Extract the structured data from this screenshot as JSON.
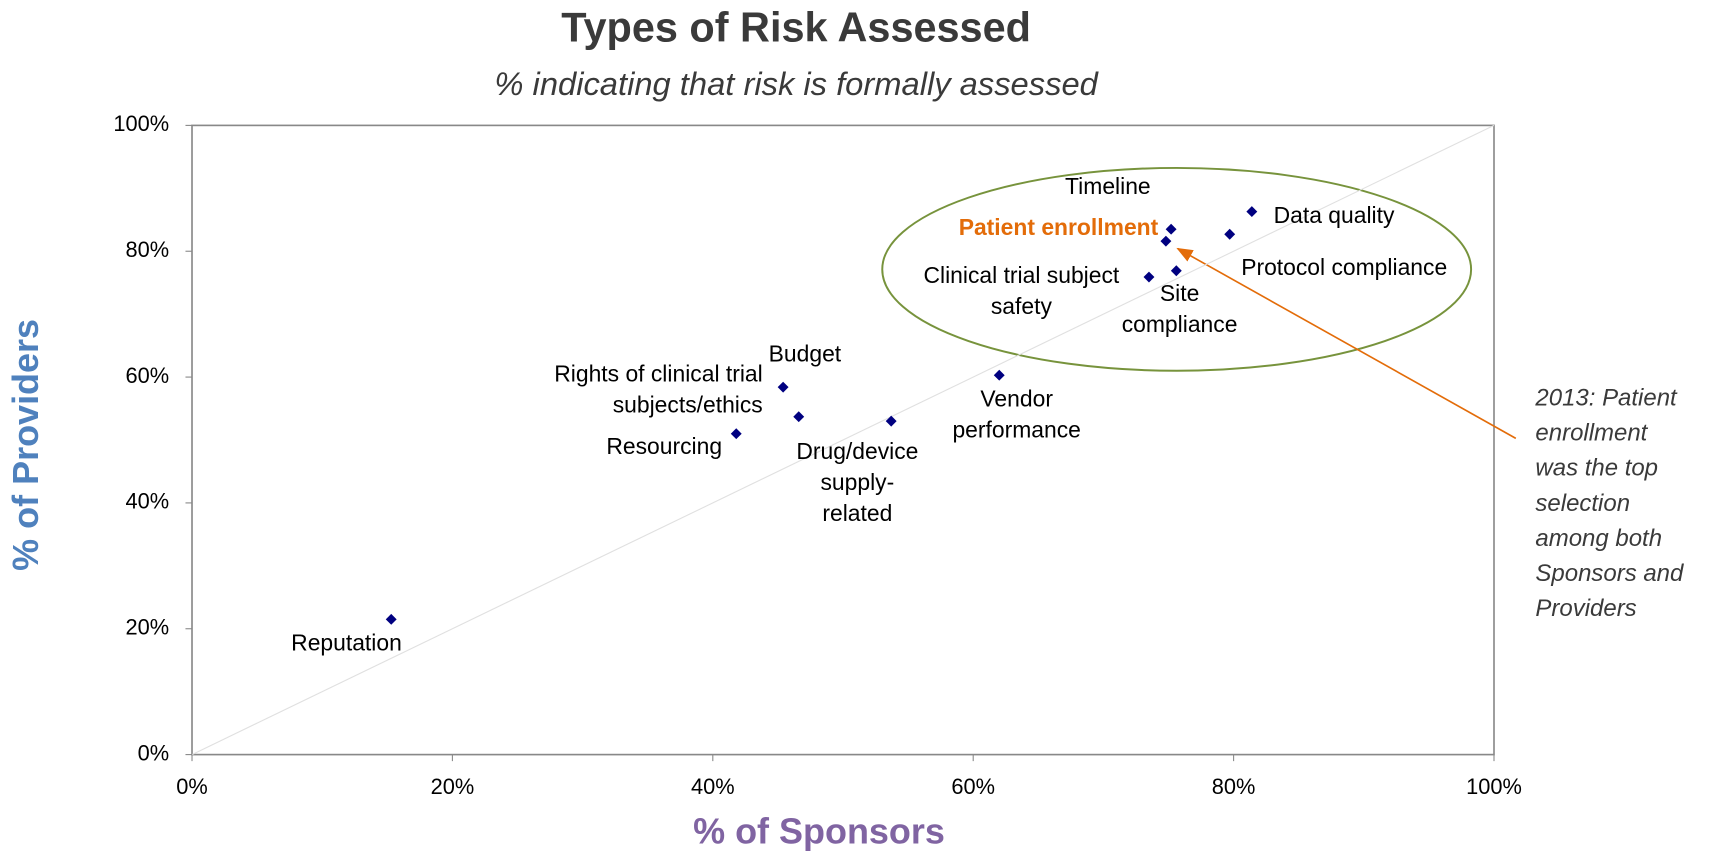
{
  "chart_data": {
    "type": "scatter",
    "title": "Types of Risk Assessed",
    "subtitle": "% indicating that risk is formally assessed",
    "x_label": "% of Sponsors",
    "y_label": "% of Providers",
    "x_label_color": "#8064a2",
    "y_label_color": "#4f81bd",
    "color": "#000080",
    "highlight_point": 7,
    "highlight_color": "#e36c09",
    "point_labels": [
      [
        "Reputation"
      ],
      [
        "Resourcing"
      ],
      [
        "Rights of clinical trial",
        "subjects/ethics"
      ],
      [
        "Budget"
      ],
      [
        "Drug/device",
        "supply-",
        "related"
      ],
      [
        "Vendor",
        "performance"
      ],
      [
        "Clinical trial subject",
        "safety"
      ],
      [
        "Patient enrollment"
      ],
      [
        "Timeline"
      ],
      [
        "Site",
        "compliance"
      ],
      [
        "Protocol compliance"
      ],
      [
        "Data quality"
      ]
    ],
    "x": [
      15.3,
      41.8,
      46.6,
      45.4,
      53.7,
      62.0,
      73.5,
      74.8,
      75.2,
      75.6,
      79.7,
      81.4
    ],
    "values": [
      21.5,
      51.0,
      53.7,
      58.4,
      53.0,
      60.3,
      75.9,
      81.6,
      83.5,
      76.9,
      82.7,
      86.3
    ],
    "xlim": [
      0,
      100
    ],
    "ylim": [
      0,
      100
    ],
    "xticks": [
      {
        "value": 0,
        "label": "0%"
      },
      {
        "value": 20,
        "label": "20%"
      },
      {
        "value": 40,
        "label": "40%"
      },
      {
        "value": 60,
        "label": "60%"
      },
      {
        "value": 80,
        "label": "80%"
      },
      {
        "value": 100,
        "label": "100%"
      }
    ],
    "yticks": [
      {
        "value": 0,
        "label": "0%"
      },
      {
        "value": 20,
        "label": "20%"
      },
      {
        "value": 40,
        "label": "40%"
      },
      {
        "value": 60,
        "label": "60%"
      },
      {
        "value": 80,
        "label": "80%"
      },
      {
        "value": 100,
        "label": "100%"
      }
    ],
    "annotation": [
      "2013: Patient",
      "enrollment",
      "was the top",
      "selection",
      "among both",
      "Sponsors and",
      "Providers"
    ]
  }
}
